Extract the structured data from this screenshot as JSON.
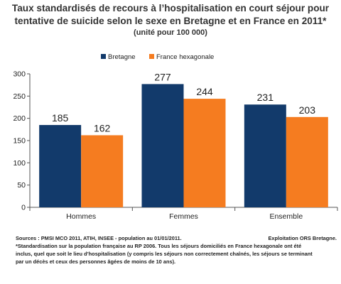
{
  "chart_data": {
    "type": "bar",
    "title": "Taux standardisés de recours à l’hospitalisation en court séjour pour tentative de suicide selon le sexe en Bretagne et en France en 2011*",
    "subtitle": "(unité pour 100 000)",
    "categories": [
      "Hommes",
      "Femmes",
      "Ensemble"
    ],
    "series": [
      {
        "name": "Bretagne",
        "values": [
          185,
          277,
          231
        ],
        "color": "#123a6b"
      },
      {
        "name": "France hexagonale",
        "values": [
          162,
          244,
          203
        ],
        "color": "#f57c20"
      }
    ],
    "ylim": [
      0,
      300
    ],
    "yticks": [
      0,
      50,
      100,
      150,
      200,
      250,
      300
    ],
    "grid": false,
    "legend_position": "top-left",
    "data_labels": true
  },
  "footer": {
    "sources": "Sources : PMSI MCO 2011, ATIH, INSEE  - population au 01/01/2011.",
    "exploitation": "Exploitation ORS Bretagne.",
    "note_line1": "*Standardisation sur la population française au RP 2006. Tous les séjours domiciliés en France hexagonale ont été",
    "note_line2": "inclus, quel que soit le lieu d’hospitalisation (y compris les séjours non correctement chaînés, les séjours se terminant",
    "note_line3": "par un décès et ceux des personnes âgées de moins de 10 ans)."
  }
}
